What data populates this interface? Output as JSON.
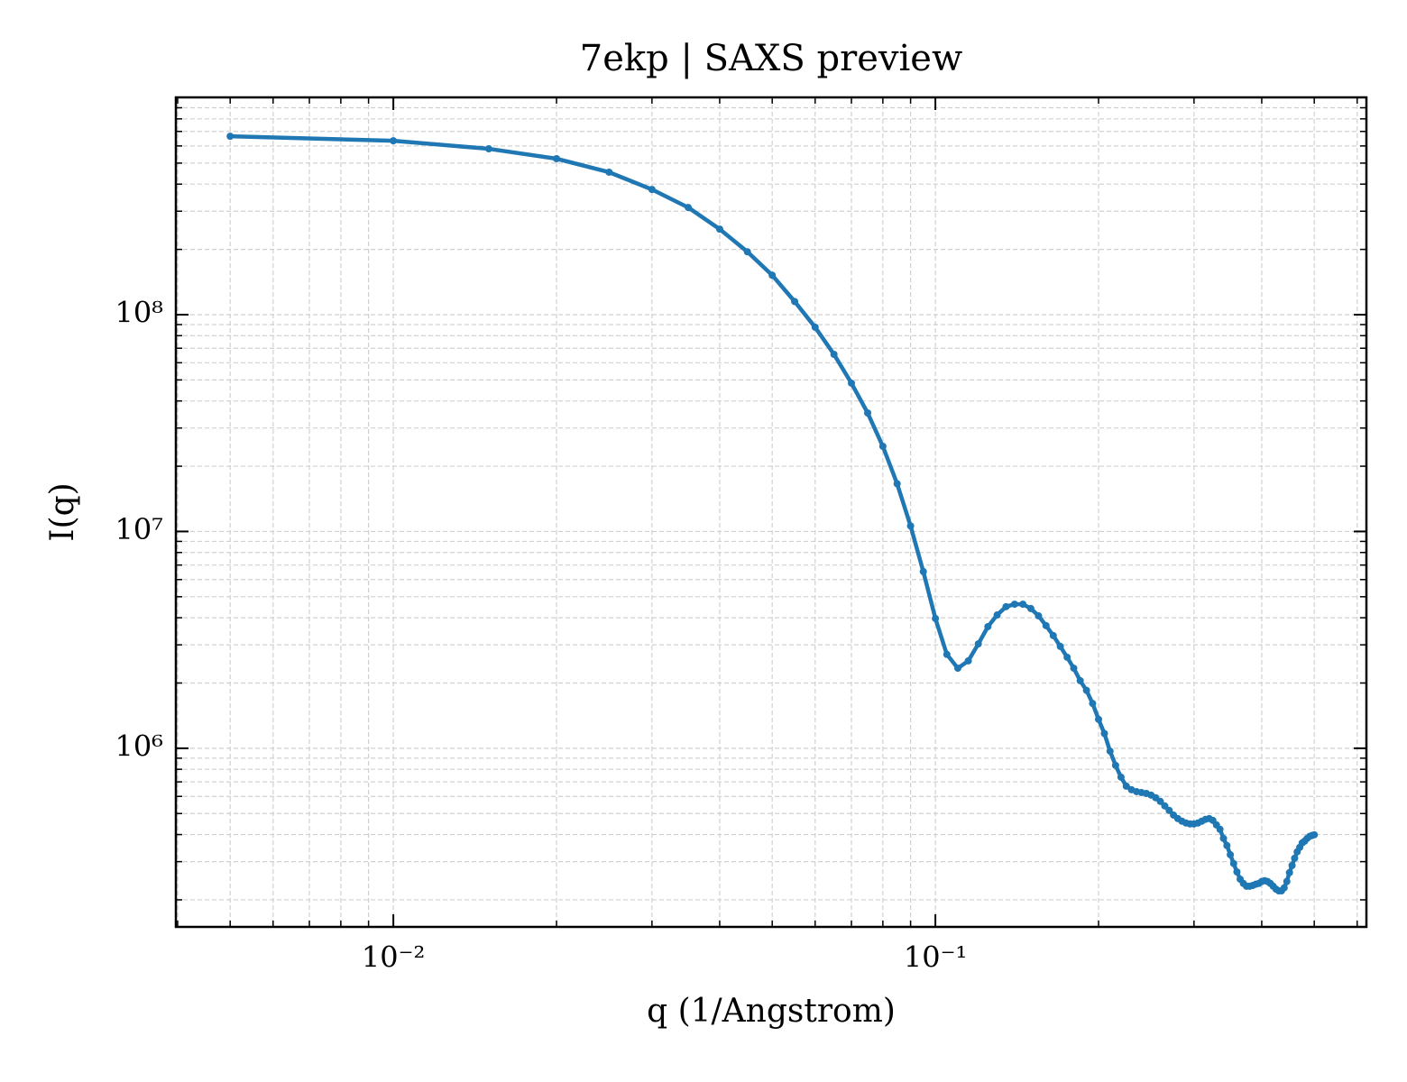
{
  "chart_data": {
    "type": "line",
    "title": "7ekp | SAXS preview",
    "xlabel": "q (1/Angstrom)",
    "ylabel": "I(q)",
    "xscale": "log",
    "yscale": "log",
    "grid": true,
    "xlim": [
      0.00397,
      0.624
    ],
    "ylim": [
      150000,
      1005000000
    ],
    "xticks": [
      {
        "value": 0.01,
        "label": "10⁻²"
      },
      {
        "value": 0.1,
        "label": "10⁻¹"
      }
    ],
    "yticks": [
      {
        "value": 1000000,
        "label": "10⁶"
      },
      {
        "value": 10000000,
        "label": "10⁷"
      },
      {
        "value": 100000000,
        "label": "10⁸"
      }
    ],
    "xticks_minor": [
      0.004,
      0.005,
      0.006,
      0.007,
      0.008,
      0.009,
      0.02,
      0.03,
      0.04,
      0.05,
      0.06,
      0.07,
      0.08,
      0.09,
      0.2,
      0.3,
      0.4,
      0.5,
      0.6
    ],
    "yticks_minor": [
      200000,
      300000,
      400000,
      500000,
      600000,
      700000,
      800000,
      900000,
      2000000,
      3000000,
      4000000,
      5000000,
      6000000,
      7000000,
      8000000,
      9000000,
      20000000,
      30000000,
      40000000,
      50000000,
      60000000,
      70000000,
      80000000,
      90000000,
      200000000,
      300000000,
      400000000,
      500000000,
      600000000,
      700000000,
      800000000,
      900000000
    ],
    "x": [
      0.005,
      0.01,
      0.015,
      0.02,
      0.025,
      0.03,
      0.035,
      0.04,
      0.045,
      0.05,
      0.055,
      0.06,
      0.065,
      0.07,
      0.075,
      0.08,
      0.085,
      0.09,
      0.095,
      0.1,
      0.105,
      0.11,
      0.115,
      0.12,
      0.125,
      0.13,
      0.135,
      0.14,
      0.145,
      0.15,
      0.155,
      0.16,
      0.165,
      0.17,
      0.175,
      0.18,
      0.185,
      0.19,
      0.195,
      0.2,
      0.205,
      0.21,
      0.215,
      0.22,
      0.225,
      0.23,
      0.235,
      0.24,
      0.245,
      0.25,
      0.255,
      0.26,
      0.265,
      0.27,
      0.275,
      0.28,
      0.285,
      0.29,
      0.295,
      0.3,
      0.305,
      0.31,
      0.315,
      0.32,
      0.325,
      0.33,
      0.335,
      0.34,
      0.345,
      0.35,
      0.355,
      0.36,
      0.365,
      0.37,
      0.375,
      0.38,
      0.385,
      0.39,
      0.395,
      0.4,
      0.405,
      0.41,
      0.415,
      0.42,
      0.425,
      0.43,
      0.435,
      0.44,
      0.445,
      0.45,
      0.455,
      0.46,
      0.465,
      0.47,
      0.475,
      0.48,
      0.485,
      0.49,
      0.495,
      0.5
    ],
    "series": [
      {
        "name": "I(q)",
        "color": "#1f77b4",
        "values": [
          665000000,
          634000000,
          582000000,
          524000000,
          454000000,
          378000000,
          312000000,
          248000000,
          195000000,
          152000000,
          115000000,
          87500000,
          65600000,
          48300000,
          35200000,
          24700000,
          16600000,
          10600000,
          6530000,
          3970000,
          2710000,
          2340000,
          2530000,
          3030000,
          3640000,
          4120000,
          4500000,
          4620000,
          4620000,
          4410000,
          4080000,
          3680000,
          3310000,
          2950000,
          2630000,
          2340000,
          2050000,
          1850000,
          1610000,
          1360000,
          1170000,
          970000,
          834000,
          736000,
          669000,
          644000,
          631000,
          625000,
          619000,
          608000,
          591000,
          569000,
          542000,
          517000,
          492000,
          474000,
          461000,
          452000,
          448000,
          448000,
          452000,
          461000,
          470000,
          474000,
          465000,
          443000,
          423000,
          384000,
          356000,
          323000,
          294000,
          269000,
          249000,
          238000,
          231000,
          231000,
          233000,
          236000,
          238000,
          243000,
          245000,
          243000,
          238000,
          231000,
          224000,
          220000,
          220000,
          227000,
          243000,
          267000,
          288000,
          311000,
          333000,
          349000,
          366000,
          373000,
          384000,
          392000,
          396000,
          399000
        ]
      }
    ]
  }
}
